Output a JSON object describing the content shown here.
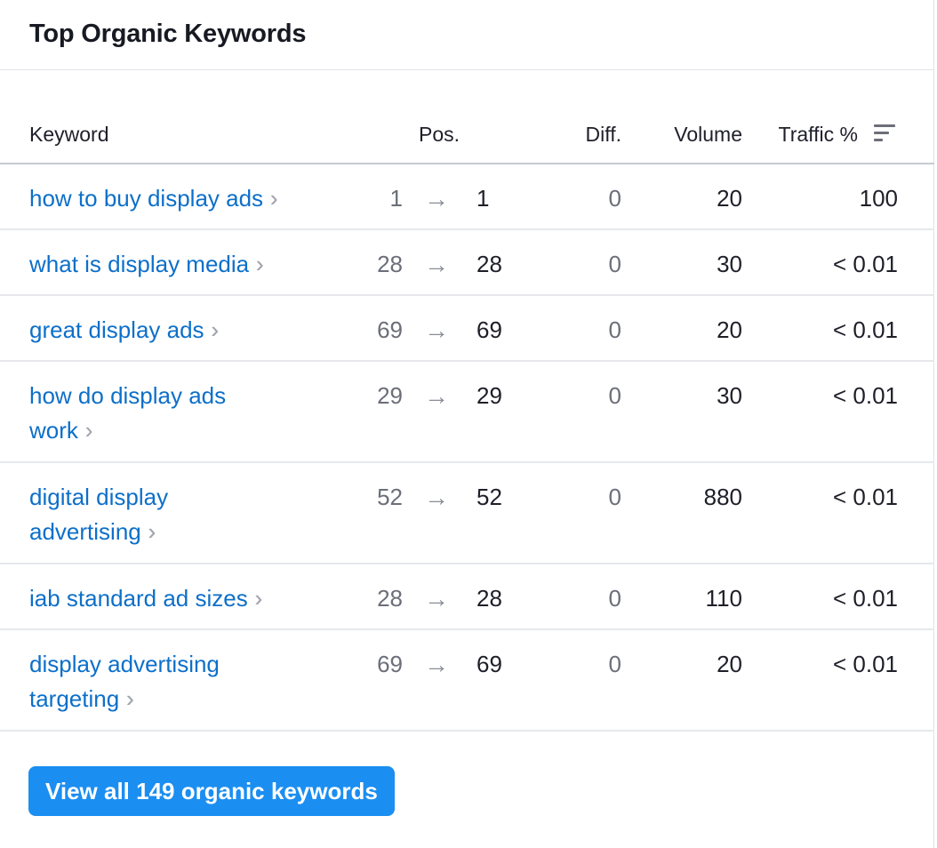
{
  "widget": {
    "title": "Top Organic Keywords",
    "columns": {
      "keyword": "Keyword",
      "pos": "Pos.",
      "diff": "Diff.",
      "volume": "Volume",
      "traffic": "Traffic %"
    },
    "rows": [
      {
        "keyword_line1": "how to buy display ads",
        "keyword_line2": "",
        "pos_from": "1",
        "pos_to": "1",
        "diff": "0",
        "volume": "20",
        "traffic": "100"
      },
      {
        "keyword_line1": "what is display media",
        "keyword_line2": "",
        "pos_from": "28",
        "pos_to": "28",
        "diff": "0",
        "volume": "30",
        "traffic": "< 0.01"
      },
      {
        "keyword_line1": "great display ads",
        "keyword_line2": "",
        "pos_from": "69",
        "pos_to": "69",
        "diff": "0",
        "volume": "20",
        "traffic": "< 0.01"
      },
      {
        "keyword_line1": "how do display ads",
        "keyword_line2": "work",
        "pos_from": "29",
        "pos_to": "29",
        "diff": "0",
        "volume": "30",
        "traffic": "< 0.01"
      },
      {
        "keyword_line1": "digital display",
        "keyword_line2": "advertising",
        "pos_from": "52",
        "pos_to": "52",
        "diff": "0",
        "volume": "880",
        "traffic": "< 0.01"
      },
      {
        "keyword_line1": "iab standard ad sizes",
        "keyword_line2": "",
        "pos_from": "28",
        "pos_to": "28",
        "diff": "0",
        "volume": "110",
        "traffic": "< 0.01"
      },
      {
        "keyword_line1": "display advertising",
        "keyword_line2": "targeting",
        "pos_from": "69",
        "pos_to": "69",
        "diff": "0",
        "volume": "20",
        "traffic": "< 0.01"
      }
    ],
    "view_all_button": "View all 149 organic keywords"
  },
  "icons": {
    "chevron": "double-chevron-right-icon",
    "arrow": "arrow-right-icon",
    "sort": "sort-icon"
  },
  "colors": {
    "link": "#0d6fc9",
    "button": "#1b8ef1",
    "muted": "#6c6e79"
  }
}
